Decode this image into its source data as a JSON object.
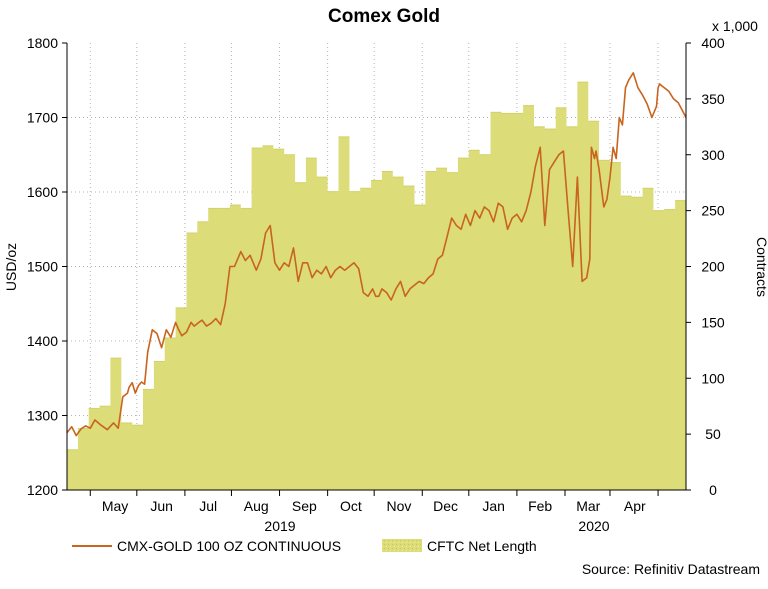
{
  "chart_data": {
    "type": "line",
    "title": "Comex Gold",
    "left_axis": {
      "label": "USD/oz",
      "range": [
        1200,
        1800
      ],
      "ticks": [
        "1200",
        "1300",
        "1400",
        "1500",
        "1600",
        "1700",
        "1800"
      ]
    },
    "right_axis": {
      "label": "Contracts",
      "multiplier": "x 1,000",
      "range": [
        0,
        400
      ],
      "ticks": [
        "0",
        "50",
        "100",
        "150",
        "200",
        "250",
        "300",
        "350",
        "400"
      ]
    },
    "x_axis": {
      "months": [
        "May",
        "Jun",
        "Jul",
        "Aug",
        "Sep",
        "Oct",
        "Nov",
        "Dec",
        "Jan",
        "Feb",
        "Mar",
        "Apr"
      ],
      "years": [
        "2019",
        "2020"
      ]
    },
    "legend": [
      {
        "name": "CMX-GOLD 100 OZ CONTINUOUS",
        "color": "#c8641e",
        "kind": "line"
      },
      {
        "name": "CFTC Net Length",
        "color": "#dcdc78",
        "kind": "area"
      }
    ],
    "source": "Source: Refinitiv Datastream",
    "series": [
      {
        "name": "CMX-GOLD 100 OZ CONTINUOUS",
        "axis": "left",
        "color": "#c8641e",
        "x": [
          0,
          3,
          6,
          9,
          12,
          15,
          18,
          22,
          26,
          30,
          33,
          36,
          39,
          40,
          42,
          44,
          46,
          48,
          50,
          52,
          55,
          58,
          61,
          64,
          67,
          70,
          72,
          74,
          77,
          80,
          82,
          85,
          87,
          90,
          93,
          96,
          99,
          102,
          105,
          108,
          112,
          115,
          118,
          122,
          125,
          128,
          131,
          134,
          137,
          140,
          143,
          146,
          149,
          152,
          155,
          158,
          161,
          164,
          167,
          170,
          173,
          176,
          179,
          182,
          185,
          188,
          191,
          194,
          197,
          199,
          201,
          203,
          206,
          209,
          212,
          215,
          218,
          221,
          224,
          227,
          230,
          233,
          236,
          239,
          242,
          245,
          248,
          251,
          254,
          257,
          260,
          263,
          266,
          269,
          272,
          275,
          278,
          281,
          284,
          287,
          290,
          293,
          296,
          299,
          302,
          305,
          308,
          311,
          314,
          317,
          320,
          323,
          326,
          329,
          332,
          335,
          337,
          338,
          340,
          341,
          343,
          346,
          348,
          350,
          352,
          354,
          356,
          358,
          360,
          362,
          365,
          368,
          371,
          374,
          377,
          380,
          381,
          382,
          385,
          388,
          391,
          394,
          397,
          399
        ],
        "values": [
          1277,
          1285,
          1273,
          1282,
          1286,
          1283,
          1294,
          1287,
          1281,
          1290,
          1283,
          1325,
          1330,
          1338,
          1344,
          1330,
          1340,
          1345,
          1342,
          1385,
          1415,
          1410,
          1391,
          1415,
          1405,
          1425,
          1415,
          1407,
          1412,
          1425,
          1420,
          1425,
          1428,
          1420,
          1424,
          1430,
          1422,
          1450,
          1500,
          1500,
          1520,
          1508,
          1515,
          1495,
          1510,
          1545,
          1555,
          1505,
          1495,
          1505,
          1500,
          1525,
          1480,
          1505,
          1505,
          1485,
          1495,
          1490,
          1500,
          1485,
          1495,
          1500,
          1495,
          1500,
          1505,
          1497,
          1465,
          1460,
          1470,
          1460,
          1460,
          1470,
          1465,
          1455,
          1470,
          1480,
          1460,
          1470,
          1475,
          1480,
          1477,
          1485,
          1490,
          1510,
          1515,
          1540,
          1565,
          1555,
          1550,
          1570,
          1555,
          1575,
          1565,
          1580,
          1575,
          1560,
          1585,
          1580,
          1550,
          1565,
          1570,
          1560,
          1575,
          1600,
          1635,
          1660,
          1555,
          1630,
          1640,
          1650,
          1655,
          1575,
          1500,
          1620,
          1480,
          1485,
          1510,
          1660,
          1645,
          1655,
          1630,
          1580,
          1590,
          1620,
          1660,
          1645,
          1700,
          1690,
          1740,
          1750,
          1760,
          1740,
          1730,
          1718,
          1700,
          1715,
          1740,
          1745,
          1740,
          1735,
          1725,
          1720,
          1708,
          1700
        ]
      },
      {
        "name": "CFTC Net Length",
        "axis": "right",
        "color": "#dcdc78",
        "x": [
          0,
          7,
          14,
          21,
          28,
          35,
          42,
          49,
          56,
          63,
          70,
          77,
          84,
          91,
          98,
          105,
          112,
          119,
          126,
          133,
          140,
          147,
          154,
          161,
          168,
          175,
          182,
          189,
          196,
          203,
          210,
          217,
          224,
          231,
          238,
          245,
          252,
          259,
          266,
          273,
          280,
          287,
          294,
          301,
          308,
          315,
          322,
          329,
          336,
          343,
          350,
          357,
          364,
          371,
          378,
          385,
          392,
          399
        ],
        "values": [
          36,
          55,
          73,
          75,
          118,
          60,
          58,
          90,
          115,
          136,
          163,
          230,
          240,
          252,
          252,
          255,
          252,
          306,
          308,
          305,
          300,
          275,
          297,
          280,
          267,
          316,
          267,
          270,
          277,
          285,
          280,
          272,
          255,
          285,
          288,
          284,
          297,
          304,
          300,
          338,
          337,
          337,
          344,
          325,
          323,
          342,
          325,
          365,
          330,
          295,
          293,
          263,
          262,
          270,
          250,
          251,
          259,
          259
        ]
      }
    ]
  }
}
